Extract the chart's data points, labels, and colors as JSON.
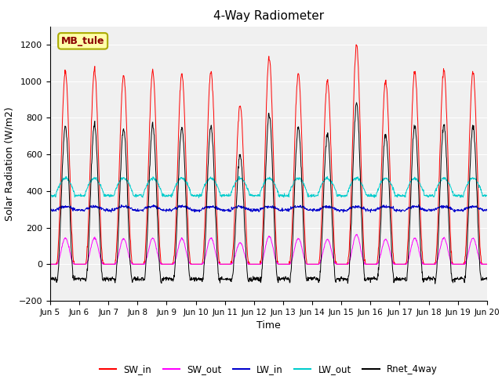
{
  "title": "4-Way Radiometer",
  "ylabel": "Solar Radiation (W/m2)",
  "xlabel": "Time",
  "station_label": "MB_tule",
  "ylim": [
    -200,
    1300
  ],
  "yticks": [
    -200,
    0,
    200,
    400,
    600,
    800,
    1000,
    1200
  ],
  "colors": {
    "SW_in": "#ff0000",
    "SW_out": "#ff00ff",
    "LW_in": "#0000cc",
    "LW_out": "#00cccc",
    "Rnet_4way": "#000000"
  },
  "legend_labels": [
    "SW_in",
    "SW_out",
    "LW_in",
    "LW_out",
    "Rnet_4way"
  ],
  "plot_bg_color": "#f0f0f0",
  "fig_bg_color": "#ffffff",
  "grid_color": "#ffffff"
}
